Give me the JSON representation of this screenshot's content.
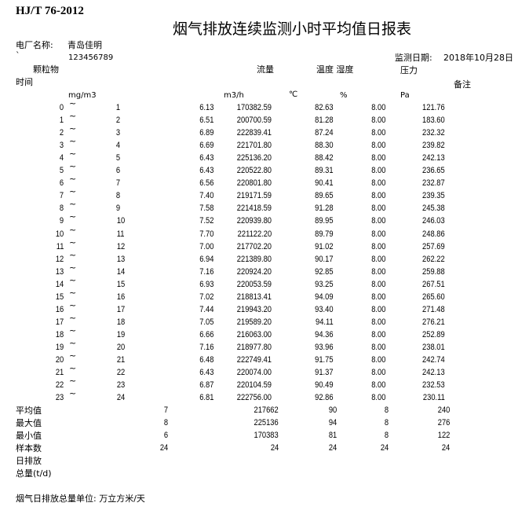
{
  "standard": "HJ/T 76-2012",
  "title": "烟气排放连续监测小时平均值日报表",
  "plant_label": "电厂名称:",
  "plant_name": "青岛佳明",
  "mark": "`",
  "code": "123456789",
  "date_label": "监测日期:",
  "date": "2018年10月28日",
  "headers": {
    "dust": "颗粒物",
    "flow": "流量",
    "temp_humidity": "温度 湿度",
    "pressure": "压力",
    "time": "时间",
    "remark": "备注"
  },
  "units": {
    "dust": "mg/m3",
    "flow": "m3/h",
    "temp": "℃",
    "humidity": "%",
    "pressure": "Pa"
  },
  "separator": "~",
  "rows": [
    [
      "0",
      "1",
      "6.13",
      "170382.59",
      "82.63",
      "8.00",
      "121.76"
    ],
    [
      "1",
      "2",
      "6.51",
      "200700.59",
      "81.28",
      "8.00",
      "183.60"
    ],
    [
      "2",
      "3",
      "6.89",
      "222839.41",
      "87.24",
      "8.00",
      "232.32"
    ],
    [
      "3",
      "4",
      "6.69",
      "221701.80",
      "88.30",
      "8.00",
      "239.82"
    ],
    [
      "4",
      "5",
      "6.43",
      "225136.20",
      "88.42",
      "8.00",
      "242.13"
    ],
    [
      "5",
      "6",
      "6.43",
      "220522.80",
      "89.31",
      "8.00",
      "236.65"
    ],
    [
      "6",
      "7",
      "6.56",
      "220801.80",
      "90.41",
      "8.00",
      "232.87"
    ],
    [
      "7",
      "8",
      "7.40",
      "219171.59",
      "89.65",
      "8.00",
      "239.35"
    ],
    [
      "8",
      "9",
      "7.58",
      "221418.59",
      "91.28",
      "8.00",
      "245.38"
    ],
    [
      "9",
      "10",
      "7.52",
      "220939.80",
      "89.95",
      "8.00",
      "246.03"
    ],
    [
      "10",
      "11",
      "7.70",
      "221122.20",
      "89.79",
      "8.00",
      "248.86"
    ],
    [
      "11",
      "12",
      "7.00",
      "217702.20",
      "91.02",
      "8.00",
      "257.69"
    ],
    [
      "12",
      "13",
      "6.94",
      "221389.80",
      "90.17",
      "8.00",
      "262.22"
    ],
    [
      "13",
      "14",
      "7.16",
      "220924.20",
      "92.85",
      "8.00",
      "259.88"
    ],
    [
      "14",
      "15",
      "6.93",
      "220053.59",
      "93.25",
      "8.00",
      "267.51"
    ],
    [
      "15",
      "16",
      "7.02",
      "218813.41",
      "94.09",
      "8.00",
      "265.60"
    ],
    [
      "16",
      "17",
      "7.44",
      "219943.20",
      "93.40",
      "8.00",
      "271.48"
    ],
    [
      "17",
      "18",
      "7.05",
      "219589.20",
      "94.11",
      "8.00",
      "276.21"
    ],
    [
      "18",
      "19",
      "6.66",
      "216063.00",
      "94.36",
      "8.00",
      "252.89"
    ],
    [
      "19",
      "20",
      "7.16",
      "218977.80",
      "93.96",
      "8.00",
      "238.01"
    ],
    [
      "20",
      "21",
      "6.48",
      "222749.41",
      "91.75",
      "8.00",
      "242.74"
    ],
    [
      "21",
      "22",
      "6.43",
      "220074.00",
      "91.37",
      "8.00",
      "242.13"
    ],
    [
      "22",
      "23",
      "6.87",
      "220104.59",
      "90.49",
      "8.00",
      "232.53"
    ],
    [
      "23",
      "24",
      "6.81",
      "222756.00",
      "92.86",
      "8.00",
      "230.11"
    ]
  ],
  "summary": [
    {
      "label": "平均值",
      "values": [
        "7",
        "217662",
        "90",
        "8",
        "240"
      ]
    },
    {
      "label": "最大值",
      "values": [
        "8",
        "225136",
        "94",
        "8",
        "276"
      ]
    },
    {
      "label": "最小值",
      "values": [
        "6",
        "170383",
        "81",
        "8",
        "122"
      ]
    },
    {
      "label": "样本数",
      "values": [
        "24",
        "24",
        "24",
        "24",
        "24"
      ]
    },
    {
      "label": "日排放",
      "values": []
    },
    {
      "label": "总量(t/d)",
      "values": []
    }
  ],
  "footer": "烟气日排放总量单位: 万立方米/天"
}
